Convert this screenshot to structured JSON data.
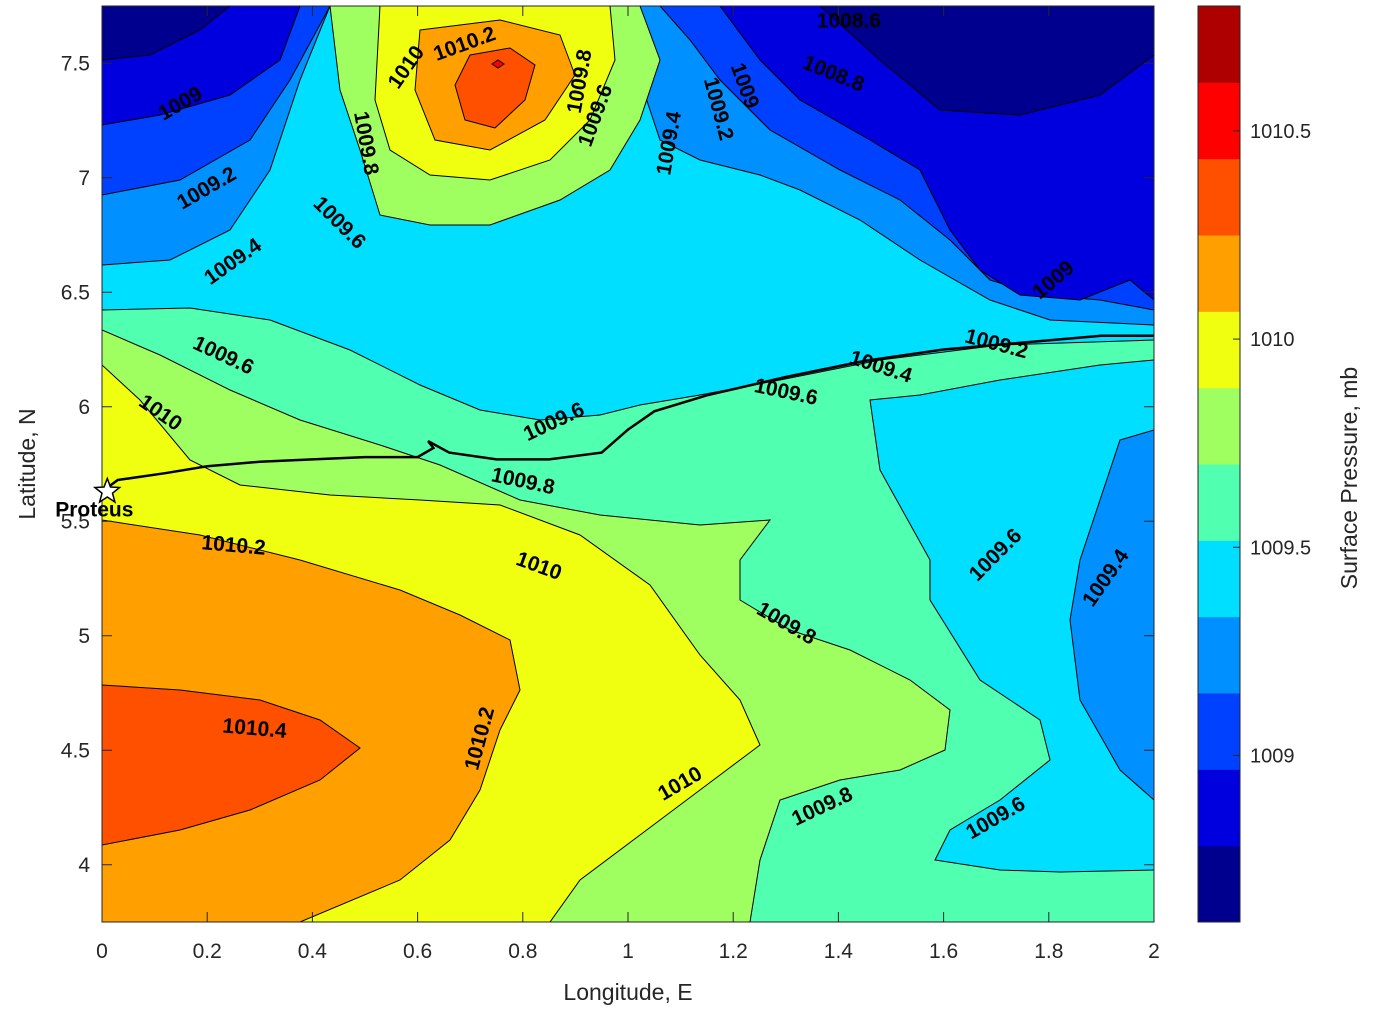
{
  "chart_data": {
    "type": "contour",
    "xlabel": "Longitude, E",
    "ylabel": "Latitude, N",
    "colorbar_label": "Surface Pressure, mb",
    "xlim": [
      0,
      2
    ],
    "ylim": [
      3.75,
      7.75
    ],
    "x_ticks": [
      "0",
      "0.2",
      "0.4",
      "0.6",
      "0.8",
      "1",
      "1.2",
      "1.4",
      "1.6",
      "1.8",
      "2"
    ],
    "y_ticks": [
      "4",
      "4.5",
      "5",
      "5.5",
      "6",
      "6.5",
      "7",
      "7.5"
    ],
    "colorbar_range": [
      1008.6,
      1010.8
    ],
    "colorbar_ticks": [
      "1009",
      "1009.5",
      "1010",
      "1010.5"
    ],
    "colormap": [
      "#00008f",
      "#0000df",
      "#0040ff",
      "#0090ff",
      "#00dfff",
      "#50ffaf",
      "#a0ff60",
      "#f0ff10",
      "#ffa000",
      "#ff5000",
      "#ff0000",
      "#af0000"
    ],
    "contour_labels": [
      {
        "text": "1008.6",
        "x": 1.42,
        "y": 7.68,
        "angle": 0
      },
      {
        "text": "1008.8",
        "x": 1.39,
        "y": 7.45,
        "angle": 22
      },
      {
        "text": "1009",
        "x": 0.15,
        "y": 7.32,
        "angle": -30
      },
      {
        "text": "1009",
        "x": 1.22,
        "y": 7.4,
        "angle": 70
      },
      {
        "text": "1009",
        "x": 1.81,
        "y": 6.55,
        "angle": -40
      },
      {
        "text": "1009.2",
        "x": 0.2,
        "y": 6.95,
        "angle": -30
      },
      {
        "text": "1009.2",
        "x": 1.17,
        "y": 7.3,
        "angle": 75
      },
      {
        "text": "1009.2",
        "x": 1.7,
        "y": 6.27,
        "angle": 15
      },
      {
        "text": "1009.4",
        "x": 0.25,
        "y": 6.63,
        "angle": -35
      },
      {
        "text": "1009.4",
        "x": 1.08,
        "y": 7.15,
        "angle": -80
      },
      {
        "text": "1009.4",
        "x": 1.48,
        "y": 6.17,
        "angle": 18
      },
      {
        "text": "1009.4",
        "x": 1.91,
        "y": 5.25,
        "angle": -55
      },
      {
        "text": "1009.6",
        "x": 0.45,
        "y": 6.8,
        "angle": 45
      },
      {
        "text": "1009.6",
        "x": 0.23,
        "y": 6.22,
        "angle": 25
      },
      {
        "text": "1009.6",
        "x": 0.94,
        "y": 7.27,
        "angle": -70
      },
      {
        "text": "1009.6",
        "x": 0.86,
        "y": 5.93,
        "angle": -25
      },
      {
        "text": "1009.6",
        "x": 1.3,
        "y": 6.06,
        "angle": 12
      },
      {
        "text": "1009.6",
        "x": 1.7,
        "y": 5.35,
        "angle": -45
      },
      {
        "text": "1009.6",
        "x": 1.7,
        "y": 4.2,
        "angle": -30
      },
      {
        "text": "1009.8",
        "x": 0.5,
        "y": 7.15,
        "angle": 80
      },
      {
        "text": "1009.8",
        "x": 0.91,
        "y": 7.42,
        "angle": -80
      },
      {
        "text": "1009.8",
        "x": 0.8,
        "y": 5.67,
        "angle": 12
      },
      {
        "text": "1009.8",
        "x": 1.3,
        "y": 5.05,
        "angle": 30
      },
      {
        "text": "1009.8",
        "x": 1.37,
        "y": 4.25,
        "angle": -25
      },
      {
        "text": "1010",
        "x": 0.58,
        "y": 7.48,
        "angle": -55
      },
      {
        "text": "1010",
        "x": 0.11,
        "y": 5.97,
        "angle": 35
      },
      {
        "text": "1010",
        "x": 0.83,
        "y": 5.3,
        "angle": 20
      },
      {
        "text": "1010",
        "x": 1.1,
        "y": 4.35,
        "angle": -30
      },
      {
        "text": "1010.2",
        "x": 0.69,
        "y": 7.58,
        "angle": -20
      },
      {
        "text": "1010.2",
        "x": 0.25,
        "y": 5.39,
        "angle": 5
      },
      {
        "text": "1010.2",
        "x": 0.72,
        "y": 4.55,
        "angle": -75
      },
      {
        "text": "1010.4",
        "x": 0.29,
        "y": 4.59,
        "angle": 5
      }
    ],
    "annotations": [
      {
        "text": "Proteus",
        "marker": "star",
        "x": 0.01,
        "y": 5.63
      }
    ],
    "track": [
      [
        0,
        5.63
      ],
      [
        0.03,
        5.68
      ],
      [
        0.12,
        5.71
      ],
      [
        0.2,
        5.74
      ],
      [
        0.3,
        5.76
      ],
      [
        0.4,
        5.77
      ],
      [
        0.5,
        5.78
      ],
      [
        0.6,
        5.78
      ],
      [
        0.63,
        5.82
      ],
      [
        0.62,
        5.85
      ],
      [
        0.66,
        5.8
      ],
      [
        0.75,
        5.77
      ],
      [
        0.85,
        5.77
      ],
      [
        0.95,
        5.8
      ],
      [
        1.0,
        5.9
      ],
      [
        1.05,
        5.98
      ],
      [
        1.15,
        6.05
      ],
      [
        1.3,
        6.13
      ],
      [
        1.45,
        6.2
      ],
      [
        1.6,
        6.25
      ],
      [
        1.75,
        6.28
      ],
      [
        1.9,
        6.31
      ],
      [
        2.0,
        6.31
      ]
    ]
  }
}
